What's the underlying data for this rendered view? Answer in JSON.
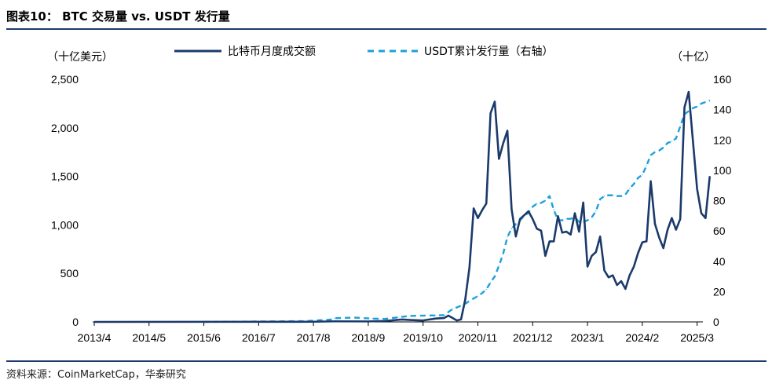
{
  "figure": {
    "title": "图表10：  BTC 交易量 vs. USDT 发行量",
    "source": "资料来源：CoinMarketCap，华泰研究"
  },
  "chart_data": {
    "type": "line",
    "title": "",
    "y_left_unit": "（十亿美元）",
    "y_right_unit": "（十亿）",
    "ylim_left": [
      0,
      2500
    ],
    "ylim_right": [
      0,
      160
    ],
    "y_left_ticks": [
      "0",
      "500",
      "1,000",
      "1,500",
      "2,000",
      "2,500"
    ],
    "y_left_tick_values": [
      0,
      500,
      1000,
      1500,
      2000,
      2500
    ],
    "y_right_ticks": [
      "0",
      "20",
      "40",
      "60",
      "80",
      "100",
      "120",
      "140",
      "160"
    ],
    "y_right_tick_values": [
      0,
      20,
      40,
      60,
      80,
      100,
      120,
      140,
      160
    ],
    "x_ticks": [
      "2013/4",
      "2014/5",
      "2015/6",
      "2016/7",
      "2017/8",
      "2018/9",
      "2019/10",
      "2020/11",
      "2021/12",
      "2023/1",
      "2024/2",
      "2025/3"
    ],
    "x_range": [
      "2013/4",
      "2025/4"
    ],
    "legend": {
      "placement": "top"
    },
    "series": [
      {
        "name": "比特币月度成交额",
        "axis": "left",
        "color": "#1b3a6b",
        "style": "solid",
        "points": [
          [
            "2013/4",
            0
          ],
          [
            "2017/8",
            2
          ],
          [
            "2018/1",
            6
          ],
          [
            "2018/9",
            5
          ],
          [
            "2019/1",
            10
          ],
          [
            "2019/5",
            25
          ],
          [
            "2019/7",
            20
          ],
          [
            "2019/10",
            15
          ],
          [
            "2020/1",
            35
          ],
          [
            "2020/3",
            40
          ],
          [
            "2020/4",
            65
          ],
          [
            "2020/5",
            40
          ],
          [
            "2020/6",
            15
          ],
          [
            "2020/7",
            25
          ],
          [
            "2020/8",
            230
          ],
          [
            "2020/9",
            560
          ],
          [
            "2020/10",
            1170
          ],
          [
            "2020/11",
            1070
          ],
          [
            "2020/12",
            1150
          ],
          [
            "2021/1",
            1220
          ],
          [
            "2021/2",
            2150
          ],
          [
            "2021/3",
            2270
          ],
          [
            "2021/4",
            1680
          ],
          [
            "2021/5",
            1840
          ],
          [
            "2021/6",
            1970
          ],
          [
            "2021/7",
            1160
          ],
          [
            "2021/8",
            880
          ],
          [
            "2021/9",
            1060
          ],
          [
            "2021/10",
            1100
          ],
          [
            "2021/11",
            1140
          ],
          [
            "2021/12",
            1060
          ],
          [
            "2022/1",
            960
          ],
          [
            "2022/2",
            940
          ],
          [
            "2022/3",
            680
          ],
          [
            "2022/4",
            830
          ],
          [
            "2022/5",
            830
          ],
          [
            "2022/6",
            1090
          ],
          [
            "2022/7",
            920
          ],
          [
            "2022/8",
            930
          ],
          [
            "2022/9",
            900
          ],
          [
            "2022/10",
            1120
          ],
          [
            "2022/11",
            930
          ],
          [
            "2022/12",
            1230
          ],
          [
            "2023/1",
            570
          ],
          [
            "2023/2",
            680
          ],
          [
            "2023/3",
            720
          ],
          [
            "2023/4",
            880
          ],
          [
            "2023/5",
            530
          ],
          [
            "2023/6",
            460
          ],
          [
            "2023/7",
            480
          ],
          [
            "2023/8",
            380
          ],
          [
            "2023/9",
            420
          ],
          [
            "2023/10",
            340
          ],
          [
            "2023/11",
            480
          ],
          [
            "2023/12",
            570
          ],
          [
            "2024/1",
            710
          ],
          [
            "2024/2",
            820
          ],
          [
            "2024/3",
            830
          ],
          [
            "2024/4",
            1450
          ],
          [
            "2024/5",
            1010
          ],
          [
            "2024/6",
            870
          ],
          [
            "2024/7",
            760
          ],
          [
            "2024/8",
            950
          ],
          [
            "2024/9",
            1070
          ],
          [
            "2024/10",
            950
          ],
          [
            "2024/11",
            1060
          ],
          [
            "2024/12",
            2210
          ],
          [
            "2025/1",
            2370
          ],
          [
            "2025/2",
            1870
          ],
          [
            "2025/3",
            1370
          ],
          [
            "2025/4",
            1120
          ],
          [
            "2025/5",
            1070
          ],
          [
            "2025/6",
            1500
          ]
        ]
      },
      {
        "name": "USDT累计发行量（右轴）",
        "axis": "right",
        "color": "#1ea0db",
        "style": "dashed",
        "points": [
          [
            "2015/6",
            0
          ],
          [
            "2017/6",
            0.5
          ],
          [
            "2017/12",
            1.5
          ],
          [
            "2018/1",
            2.5
          ],
          [
            "2018/6",
            2.8
          ],
          [
            "2018/10",
            2.2
          ],
          [
            "2019/1",
            2.0
          ],
          [
            "2019/4",
            3.0
          ],
          [
            "2019/7",
            4.0
          ],
          [
            "2020/1",
            4.3
          ],
          [
            "2020/3",
            4.5
          ],
          [
            "2020/4",
            6.5
          ],
          [
            "2020/5",
            8.5
          ],
          [
            "2020/6",
            9.5
          ],
          [
            "2020/8",
            12
          ],
          [
            "2020/10",
            15.5
          ],
          [
            "2020/11",
            17
          ],
          [
            "2020/12",
            19
          ],
          [
            "2021/1",
            21.5
          ],
          [
            "2021/2",
            26
          ],
          [
            "2021/3",
            30
          ],
          [
            "2021/4",
            37
          ],
          [
            "2021/5",
            45
          ],
          [
            "2021/6",
            56
          ],
          [
            "2021/7",
            61.5
          ],
          [
            "2021/8",
            64.5
          ],
          [
            "2021/9",
            67
          ],
          [
            "2021/10",
            70
          ],
          [
            "2021/11",
            72
          ],
          [
            "2021/12",
            76
          ],
          [
            "2022/1",
            78
          ],
          [
            "2022/2",
            78.5
          ],
          [
            "2022/3",
            80
          ],
          [
            "2022/4",
            83
          ],
          [
            "2022/5",
            74
          ],
          [
            "2022/6",
            67
          ],
          [
            "2022/7",
            67
          ],
          [
            "2022/8",
            68
          ],
          [
            "2022/9",
            68
          ],
          [
            "2022/10",
            69
          ],
          [
            "2022/11",
            66
          ],
          [
            "2022/12",
            66
          ],
          [
            "2023/1",
            67
          ],
          [
            "2023/2",
            69
          ],
          [
            "2023/3",
            73
          ],
          [
            "2023/4",
            81
          ],
          [
            "2023/5",
            83
          ],
          [
            "2023/6",
            83.5
          ],
          [
            "2023/7",
            83.5
          ],
          [
            "2023/8",
            83
          ],
          [
            "2023/9",
            83
          ],
          [
            "2023/10",
            84
          ],
          [
            "2023/11",
            88
          ],
          [
            "2023/12",
            91
          ],
          [
            "2024/1",
            95
          ],
          [
            "2024/2",
            97
          ],
          [
            "2024/3",
            103
          ],
          [
            "2024/4",
            110
          ],
          [
            "2024/5",
            112
          ],
          [
            "2024/6",
            113
          ],
          [
            "2024/7",
            115
          ],
          [
            "2024/8",
            118
          ],
          [
            "2024/9",
            119
          ],
          [
            "2024/10",
            121
          ],
          [
            "2024/11",
            129
          ],
          [
            "2024/12",
            137
          ],
          [
            "2025/1",
            139
          ],
          [
            "2025/2",
            141
          ],
          [
            "2025/3",
            142
          ],
          [
            "2025/4",
            144
          ],
          [
            "2025/5",
            145
          ],
          [
            "2025/6",
            146
          ]
        ]
      }
    ]
  }
}
